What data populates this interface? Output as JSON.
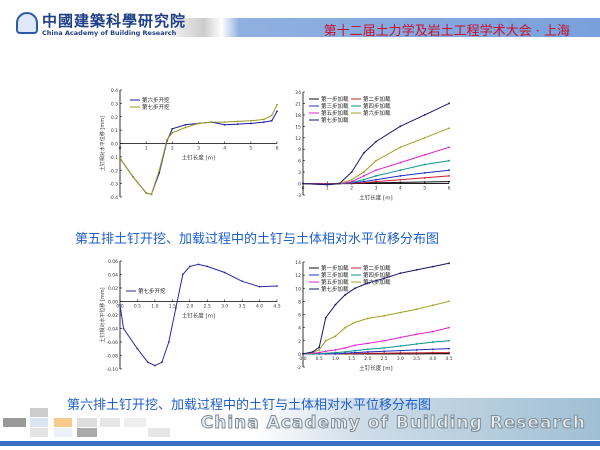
{
  "header": {
    "org_cn": "中國建築科學研究院",
    "org_en": "China Academy of Building Research",
    "conference": "第十二届土力学及岩土工程学术大会 · 上海"
  },
  "captions": [
    "第五排土钉开挖、加载过程中的土钉与土体相对水平位移分布图",
    "第六排土钉开挖、加载过程中的土钉与土体相对水平位移分布图"
  ],
  "footer": {
    "watermark": "China Academy of Building Research"
  },
  "colors": {
    "accent": "#1f5fc8",
    "title_red": "#c8102e",
    "band": "#7aa0dc"
  },
  "chart_data": [
    {
      "type": "line",
      "xlabel": "土钉长度 [m]",
      "ylabel": "土钉相对水平位移 [mm]",
      "xlim": [
        0,
        6
      ],
      "ylim": [
        -0.4,
        0.4
      ],
      "xticks": [
        "0",
        "1",
        "2",
        "3",
        "4",
        "5",
        "6"
      ],
      "yticks": [
        "-0.4",
        "-0.3",
        "-0.2",
        "-0.1",
        "0.0",
        "0.1",
        "0.2",
        "0.3",
        "0.4"
      ],
      "legend": "top-left",
      "x": [
        0,
        0.5,
        1,
        1.2,
        1.5,
        1.8,
        2,
        2.5,
        3,
        3.5,
        4,
        4.5,
        5,
        5.5,
        5.8,
        6
      ],
      "series": [
        {
          "name": "第六步开挖",
          "color": "#1a1a9a",
          "values": [
            -0.11,
            -0.25,
            -0.37,
            -0.38,
            -0.22,
            0.02,
            0.11,
            0.14,
            0.15,
            0.16,
            0.14,
            0.145,
            0.15,
            0.16,
            0.17,
            0.24
          ]
        },
        {
          "name": "第七步开挖",
          "color": "#9a9a20",
          "values": [
            -0.11,
            -0.25,
            -0.37,
            -0.38,
            -0.2,
            0.03,
            0.08,
            0.12,
            0.15,
            0.16,
            0.16,
            0.165,
            0.17,
            0.18,
            0.21,
            0.29
          ]
        }
      ]
    },
    {
      "type": "line",
      "xlabel": "土钉长度 [m]",
      "ylabel": "土钉相对水平位移 [mm]",
      "xlim": [
        0,
        6
      ],
      "ylim": [
        -3,
        24
      ],
      "xticks": [
        "0",
        "1",
        "2",
        "3",
        "4",
        "5",
        "6"
      ],
      "yticks": [
        "-3",
        "0",
        "3",
        "6",
        "9",
        "12",
        "15",
        "18",
        "21",
        "24"
      ],
      "legend": "top-left",
      "x": [
        0,
        1,
        1.5,
        2,
        2.5,
        3,
        4,
        5,
        6
      ],
      "series": [
        {
          "name": "第一步加载",
          "color": "#111111",
          "values": [
            0,
            -0.1,
            0,
            0,
            0.1,
            0.2,
            0.3,
            0.4,
            0.5
          ]
        },
        {
          "name": "第二步加载",
          "color": "#d02030",
          "values": [
            0,
            -0.1,
            0,
            0.1,
            0.2,
            0.5,
            1,
            1.5,
            2
          ]
        },
        {
          "name": "第三步加载",
          "color": "#2030c0",
          "values": [
            0,
            -0.2,
            0,
            0.2,
            0.5,
            1,
            2,
            2.8,
            3.5
          ]
        },
        {
          "name": "第四步加载",
          "color": "#10908a",
          "values": [
            0,
            -0.2,
            0,
            0.3,
            1,
            2,
            3.5,
            5,
            6
          ]
        },
        {
          "name": "第五步加载",
          "color": "#e020d0",
          "values": [
            0,
            -0.2,
            0,
            0.5,
            2,
            3.5,
            5.5,
            7.5,
            9.5
          ]
        },
        {
          "name": "第六步加载",
          "color": "#a0a020",
          "values": [
            0,
            -0.3,
            0,
            1,
            3,
            6,
            9.5,
            12,
            14.5
          ]
        },
        {
          "name": "第七步加载",
          "color": "#141470",
          "values": [
            0,
            -0.3,
            0,
            3,
            8,
            11,
            15,
            18,
            21
          ]
        }
      ]
    },
    {
      "type": "line",
      "xlabel": "土钉长度 [m]",
      "ylabel": "土钉相对水平位移 [mm]",
      "xlim": [
        0,
        4.5
      ],
      "ylim": [
        -0.1,
        0.06
      ],
      "xticks": [
        "0.0",
        "0.5",
        "1.0",
        "1.5",
        "2.0",
        "2.5",
        "3.0",
        "3.5",
        "4.0",
        "4.5"
      ],
      "yticks": [
        "-0.10",
        "-0.08",
        "-0.06",
        "-0.04",
        "-0.02",
        "0.00",
        "0.02",
        "0.04",
        "0.06"
      ],
      "legend": "left",
      "x": [
        0,
        0.1,
        0.5,
        0.8,
        1.0,
        1.2,
        1.4,
        1.6,
        1.8,
        2.0,
        2.25,
        2.5,
        3,
        3.5,
        4,
        4.5
      ],
      "series": [
        {
          "name": "第七步开挖",
          "color": "#2a2aa0",
          "values": [
            -0.005,
            -0.04,
            -0.07,
            -0.09,
            -0.095,
            -0.09,
            -0.06,
            -0.01,
            0.04,
            0.052,
            0.055,
            0.052,
            0.043,
            0.03,
            0.022,
            0.023
          ]
        }
      ]
    },
    {
      "type": "line",
      "xlabel": "土钉长度 [m]",
      "ylabel": "土钉相对水平位移 [mm]",
      "xlim": [
        0,
        4.5
      ],
      "ylim": [
        -2,
        14
      ],
      "xticks": [
        "0.0",
        "0.5",
        "1.0",
        "1.5",
        "2.0",
        "2.5",
        "3.0",
        "3.5",
        "4.0",
        "4.5"
      ],
      "yticks": [
        "-2",
        "0",
        "2",
        "4",
        "6",
        "8",
        "10",
        "12",
        "14"
      ],
      "legend": "top-left",
      "x": [
        0,
        0.3,
        0.5,
        0.7,
        1.0,
        1.3,
        1.6,
        2,
        2.5,
        3,
        3.5,
        4,
        4.5
      ],
      "series": [
        {
          "name": "第一步加载",
          "color": "#111111",
          "values": [
            0,
            0,
            0,
            0,
            0,
            0,
            0,
            0,
            0,
            0,
            0,
            0.05,
            0.05
          ]
        },
        {
          "name": "第二步加载",
          "color": "#d02030",
          "values": [
            0,
            0,
            0,
            0,
            0,
            0,
            0.05,
            0.1,
            0.1,
            0.15,
            0.15,
            0.2,
            0.2
          ]
        },
        {
          "name": "第三步加载",
          "color": "#2030c0",
          "values": [
            0,
            0,
            0,
            0,
            0,
            0.1,
            0.2,
            0.3,
            0.4,
            0.5,
            0.6,
            0.7,
            0.8
          ]
        },
        {
          "name": "第四步加载",
          "color": "#10908a",
          "values": [
            0,
            0,
            0,
            0.1,
            0.2,
            0.3,
            0.5,
            0.7,
            0.9,
            1.2,
            1.5,
            1.8,
            2
          ]
        },
        {
          "name": "第五步加载",
          "color": "#e020d0",
          "values": [
            0,
            0.1,
            0.2,
            0.4,
            0.6,
            0.9,
            1.3,
            1.6,
            2,
            2.5,
            3,
            3.4,
            4
          ]
        },
        {
          "name": "第六步加载",
          "color": "#a0a020",
          "values": [
            0,
            0.2,
            0.6,
            2,
            2.7,
            4,
            4.8,
            5.4,
            5.8,
            6.3,
            6.8,
            7.4,
            8
          ]
        },
        {
          "name": "第七步加载",
          "color": "#141470",
          "values": [
            0,
            0.3,
            1,
            5.5,
            7.5,
            9,
            10,
            10.8,
            11.5,
            12.3,
            12.8,
            13.3,
            13.8
          ]
        }
      ]
    }
  ]
}
